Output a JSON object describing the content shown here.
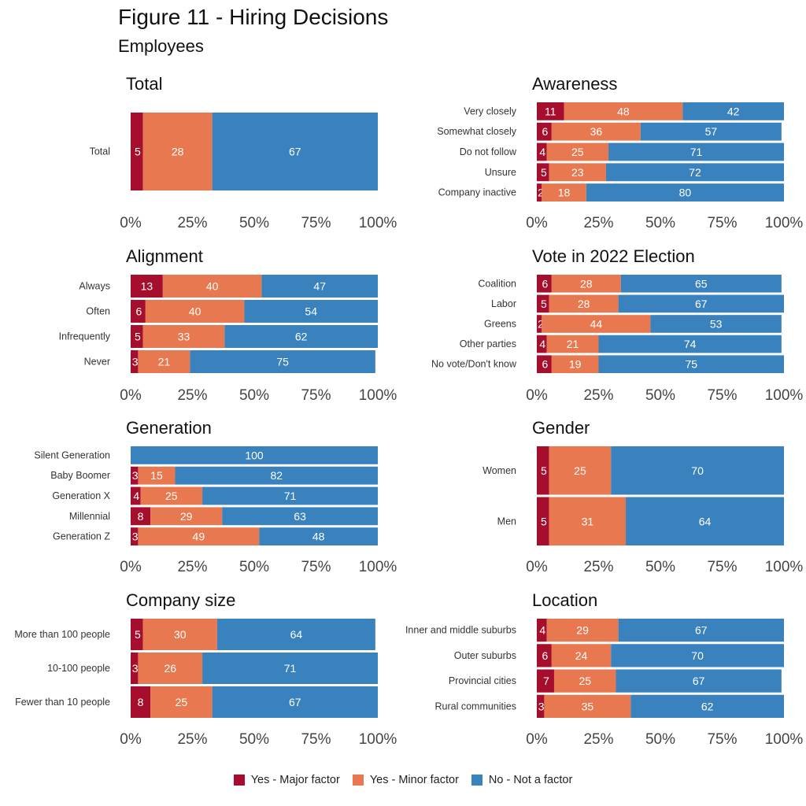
{
  "title": "Figure 11 - Hiring Decisions",
  "subtitle": "Employees",
  "legend": [
    {
      "label": "Yes - Major factor",
      "color": "#a50f2d"
    },
    {
      "label": "Yes - Minor factor",
      "color": "#e8784f"
    },
    {
      "label": "No - Not a factor",
      "color": "#3a82bd"
    }
  ],
  "chart_data": [
    {
      "type": "bar",
      "stacked": true,
      "orientation": "horizontal",
      "title": "Total",
      "xticks": [
        "0%",
        "25%",
        "50%",
        "75%",
        "100%"
      ],
      "xlim": [
        0,
        100
      ],
      "categories": [
        "Total"
      ],
      "series": [
        {
          "name": "Yes - Major factor",
          "values": [
            5
          ]
        },
        {
          "name": "Yes - Minor factor",
          "values": [
            28
          ]
        },
        {
          "name": "No - Not a factor",
          "values": [
            67
          ]
        }
      ]
    },
    {
      "type": "bar",
      "stacked": true,
      "orientation": "horizontal",
      "title": "Awareness",
      "xticks": [
        "0%",
        "25%",
        "50%",
        "75%",
        "100%"
      ],
      "xlim": [
        0,
        100
      ],
      "categories": [
        "Very closely",
        "Somewhat closely",
        "Do not follow",
        "Unsure",
        "Company inactive"
      ],
      "series": [
        {
          "name": "Yes - Major factor",
          "values": [
            11,
            6,
            4,
            5,
            2
          ]
        },
        {
          "name": "Yes - Minor factor",
          "values": [
            48,
            36,
            25,
            23,
            18
          ]
        },
        {
          "name": "No - Not a factor",
          "values": [
            42,
            57,
            71,
            72,
            80
          ]
        }
      ]
    },
    {
      "type": "bar",
      "stacked": true,
      "orientation": "horizontal",
      "title": "Alignment",
      "xticks": [
        "0%",
        "25%",
        "50%",
        "75%",
        "100%"
      ],
      "xlim": [
        0,
        100
      ],
      "categories": [
        "Always",
        "Often",
        "Infrequently",
        "Never"
      ],
      "series": [
        {
          "name": "Yes - Major factor",
          "values": [
            13,
            6,
            5,
            3
          ]
        },
        {
          "name": "Yes - Minor factor",
          "values": [
            40,
            40,
            33,
            21
          ]
        },
        {
          "name": "No - Not a factor",
          "values": [
            47,
            54,
            62,
            75
          ]
        }
      ]
    },
    {
      "type": "bar",
      "stacked": true,
      "orientation": "horizontal",
      "title": "Vote in 2022 Election",
      "xticks": [
        "0%",
        "25%",
        "50%",
        "75%",
        "100%"
      ],
      "xlim": [
        0,
        100
      ],
      "categories": [
        "Coalition",
        "Labor",
        "Greens",
        "Other parties",
        "No vote/Don't know"
      ],
      "series": [
        {
          "name": "Yes - Major factor",
          "values": [
            6,
            5,
            2,
            4,
            6
          ]
        },
        {
          "name": "Yes - Minor factor",
          "values": [
            28,
            28,
            44,
            21,
            19
          ]
        },
        {
          "name": "No - Not a factor",
          "values": [
            65,
            67,
            53,
            74,
            75
          ]
        }
      ]
    },
    {
      "type": "bar",
      "stacked": true,
      "orientation": "horizontal",
      "title": "Generation",
      "xticks": [
        "0%",
        "25%",
        "50%",
        "75%",
        "100%"
      ],
      "xlim": [
        0,
        100
      ],
      "categories": [
        "Silent Generation",
        "Baby Boomer",
        "Generation X",
        "Millennial",
        "Generation Z"
      ],
      "series": [
        {
          "name": "Yes - Major factor",
          "values": [
            null,
            3,
            4,
            8,
            3
          ]
        },
        {
          "name": "Yes - Minor factor",
          "values": [
            null,
            15,
            25,
            29,
            49
          ]
        },
        {
          "name": "No - Not a factor",
          "values": [
            100,
            82,
            71,
            63,
            48
          ]
        }
      ]
    },
    {
      "type": "bar",
      "stacked": true,
      "orientation": "horizontal",
      "title": "Gender",
      "xticks": [
        "0%",
        "25%",
        "50%",
        "75%",
        "100%"
      ],
      "xlim": [
        0,
        100
      ],
      "categories": [
        "Women",
        "Men"
      ],
      "series": [
        {
          "name": "Yes - Major factor",
          "values": [
            5,
            5
          ]
        },
        {
          "name": "Yes - Minor factor",
          "values": [
            25,
            31
          ]
        },
        {
          "name": "No - Not a factor",
          "values": [
            70,
            64
          ]
        }
      ]
    },
    {
      "type": "bar",
      "stacked": true,
      "orientation": "horizontal",
      "title": "Company size",
      "xticks": [
        "0%",
        "25%",
        "50%",
        "75%",
        "100%"
      ],
      "xlim": [
        0,
        100
      ],
      "categories": [
        "More than 100 people",
        "10-100 people",
        "Fewer than 10 people"
      ],
      "series": [
        {
          "name": "Yes - Major factor",
          "values": [
            5,
            3,
            8
          ]
        },
        {
          "name": "Yes - Minor factor",
          "values": [
            30,
            26,
            25
          ]
        },
        {
          "name": "No - Not a factor",
          "values": [
            64,
            71,
            67
          ]
        }
      ]
    },
    {
      "type": "bar",
      "stacked": true,
      "orientation": "horizontal",
      "title": "Location",
      "xticks": [
        "0%",
        "25%",
        "50%",
        "75%",
        "100%"
      ],
      "xlim": [
        0,
        100
      ],
      "categories": [
        "Inner and middle suburbs",
        "Outer suburbs",
        "Provincial cities",
        "Rural communities"
      ],
      "series": [
        {
          "name": "Yes - Major factor",
          "values": [
            4,
            6,
            7,
            3
          ]
        },
        {
          "name": "Yes - Minor factor",
          "values": [
            29,
            24,
            25,
            35
          ]
        },
        {
          "name": "No - Not a factor",
          "values": [
            67,
            70,
            67,
            62
          ]
        }
      ]
    }
  ]
}
